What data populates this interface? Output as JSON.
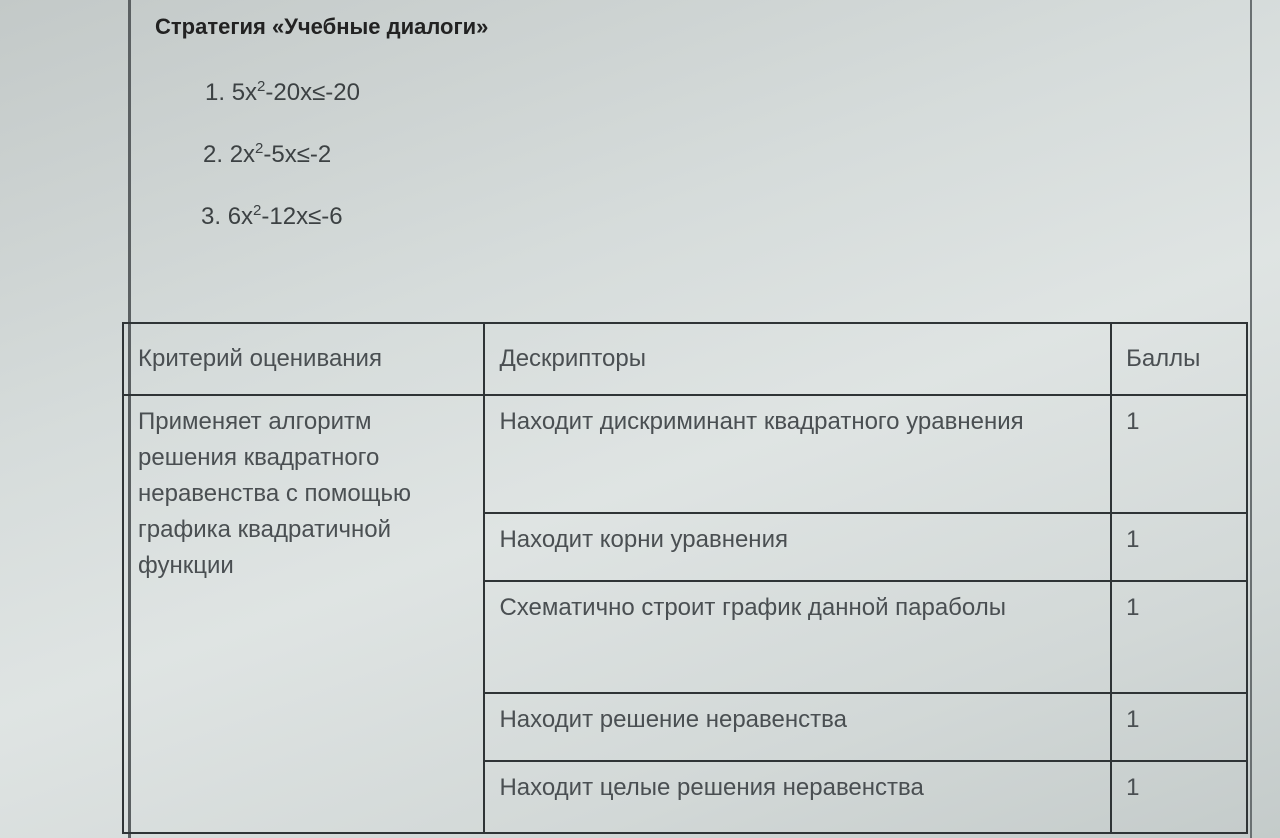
{
  "title": "Стратегия «Учебные диалоги»",
  "equations": [
    {
      "num": "1.",
      "base": "5x",
      "sup": "2",
      "rest": "-20x≤-20"
    },
    {
      "num": "2.",
      "base": "2x",
      "sup": "2",
      "rest": "-5x≤-2"
    },
    {
      "num": "3.",
      "base": "6x",
      "sup": "2",
      "rest": "-12x≤-6"
    }
  ],
  "table": {
    "headers": [
      "Критерий оценивания",
      "Дескрипторы",
      "Баллы"
    ],
    "criterion": "Применяет алгоритм решения квадратного неравенства с помощью графика квадратичной функции",
    "rows": [
      {
        "descriptor": "Находит дискриминант квадратного уравнения",
        "points": "1"
      },
      {
        "descriptor": "Находит корни уравнения",
        "points": "1"
      },
      {
        "descriptor": "Схематично строит график данной параболы",
        "points": "1"
      },
      {
        "descriptor": "Находит решение неравенства",
        "points": "1"
      },
      {
        "descriptor": "Находит целые решения неравенства",
        "points": "1"
      }
    ]
  }
}
